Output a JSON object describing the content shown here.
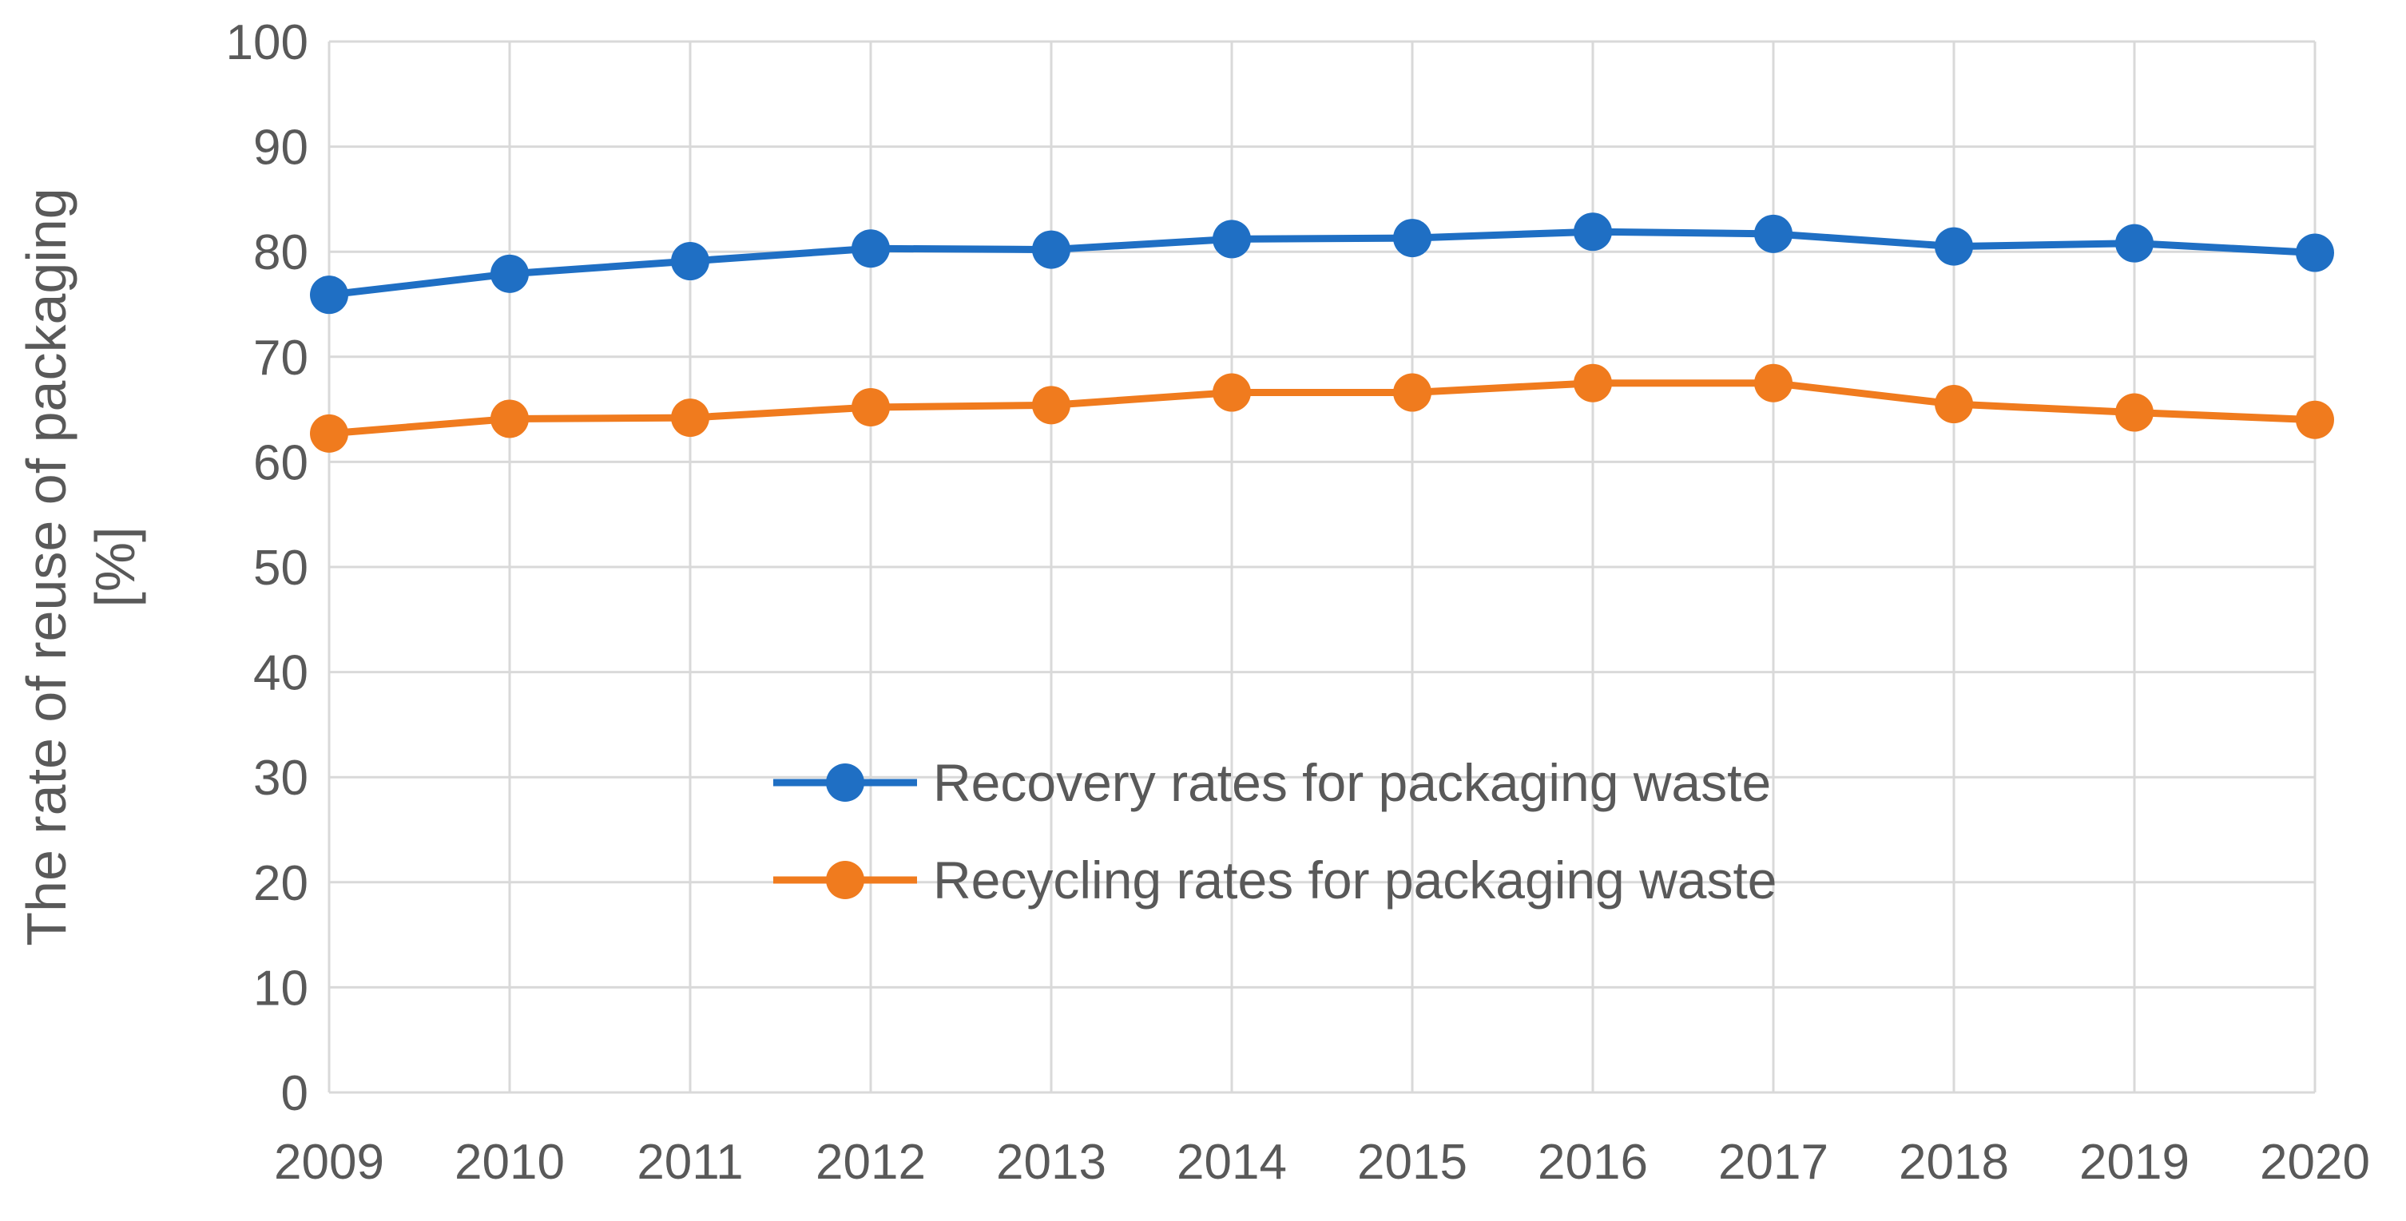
{
  "chart_data": {
    "type": "line",
    "title": "",
    "xlabel": "",
    "ylabel_lines": [
      "The rate of reuse of packaging",
      "[%]"
    ],
    "x": [
      "2009",
      "2010",
      "2011",
      "2012",
      "2013",
      "2014",
      "2015",
      "2016",
      "2017",
      "2018",
      "2019",
      "2020"
    ],
    "y_ticks": [
      "0",
      "10",
      "20",
      "30",
      "40",
      "50",
      "60",
      "70",
      "80",
      "90",
      "100"
    ],
    "ylim": [
      0,
      100
    ],
    "grid": true,
    "legend_position": "center-right",
    "series": [
      {
        "name": "Recovery rates for packaging waste",
        "color": "#1f6fc4",
        "values": [
          75.9,
          77.9,
          79.1,
          80.3,
          80.2,
          81.2,
          81.3,
          81.9,
          81.7,
          80.5,
          80.8,
          79.9
        ]
      },
      {
        "name": "Recycling rates for packaging waste",
        "color": "#f07b1e",
        "values": [
          62.7,
          64.1,
          64.2,
          65.2,
          65.4,
          66.6,
          66.6,
          67.5,
          67.5,
          65.5,
          64.7,
          64.0
        ]
      }
    ],
    "grid_color": "#d9d9d9"
  }
}
